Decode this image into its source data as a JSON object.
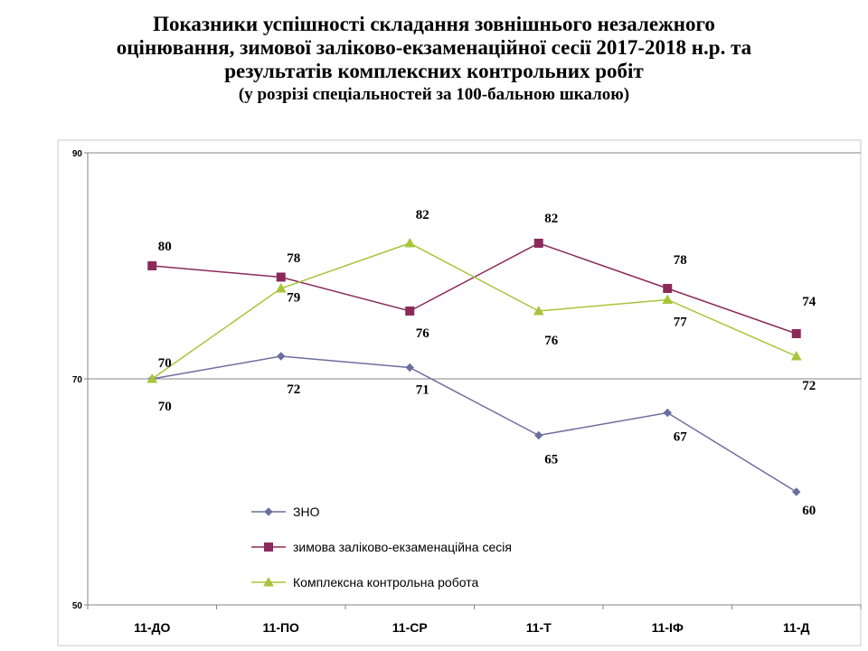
{
  "title": {
    "line1": "Показники успішності складання зовнішнього незалежного",
    "line2": "оцінювання, зимової заліково-екзаменаційної сесії 2017-2018 н.р. та",
    "line3": "результатів  комплексних контрольних робіт",
    "line4": "(у розрізі спеціальностей за 100-бальною шкалою)"
  },
  "chart_data": {
    "type": "line",
    "categories": [
      "11-ДО",
      "11-ПО",
      "11-СР",
      "11-Т",
      "11-ІФ",
      "11-Д"
    ],
    "ylim": [
      50,
      90
    ],
    "yticks": [
      50,
      70,
      90
    ],
    "grid": "horizontal",
    "legend_position": "bottom-left",
    "series": [
      {
        "name": "ЗНО",
        "color": "#6B6F9E",
        "marker": "diamond",
        "values": [
          70,
          72,
          71,
          65,
          67,
          60
        ],
        "labels": [
          "70",
          "72",
          "71",
          "65",
          "67",
          "60"
        ]
      },
      {
        "name": "зимова заліково-екзаменаційна сесія",
        "color": "#8B2A5A",
        "marker": "square",
        "values": [
          80,
          79,
          76,
          82,
          78,
          74
        ],
        "labels": [
          "80",
          "79",
          "76",
          "82",
          "78",
          "74"
        ]
      },
      {
        "name": "Комплексна контрольна робота",
        "color": "#A8C43A",
        "marker": "triangle",
        "values": [
          70,
          78,
          82,
          76,
          77,
          72
        ],
        "labels": [
          "70",
          "78",
          "82",
          "76",
          "77",
          "72"
        ]
      }
    ]
  }
}
